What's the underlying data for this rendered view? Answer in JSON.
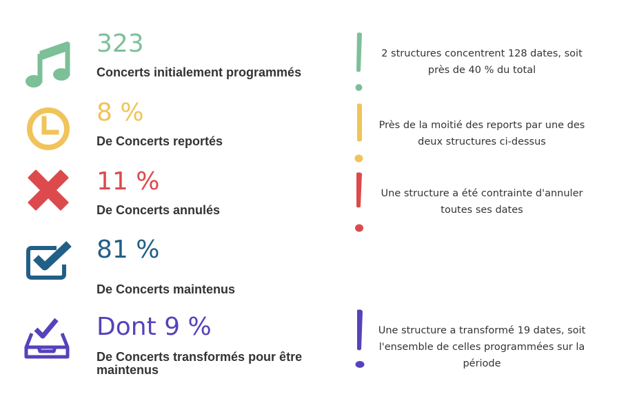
{
  "colors": {
    "green": "#7dbf97",
    "yellow": "#f0c45a",
    "red": "#dc4a4d",
    "blue": "#215f86",
    "purple": "#5642bb"
  },
  "stats": [
    {
      "icon": "music-note-icon",
      "value": "323",
      "label": "Concerts initialement programmés",
      "note": "2 structures concentrent 128 dates, soit près de 40 % du total"
    },
    {
      "icon": "clock-icon",
      "value": "8 %",
      "label": "De Concerts reportés",
      "note": "Près de la moitié des reports par une des deux structures ci-dessus"
    },
    {
      "icon": "cross-icon",
      "value": "11 %",
      "label": "De Concerts annulés",
      "note": "Une structure a été contrainte d'annuler toutes ses dates"
    },
    {
      "icon": "checkbox-icon",
      "value": "81 %",
      "label": "De Concerts maintenus",
      "note": ""
    },
    {
      "icon": "ballot-box-icon",
      "value": "Dont 9 %",
      "label": "De Concerts transformés pour être maintenus",
      "note": "Une structure a transformé 19 dates, soit l'ensemble de celles programmées sur la période"
    }
  ]
}
